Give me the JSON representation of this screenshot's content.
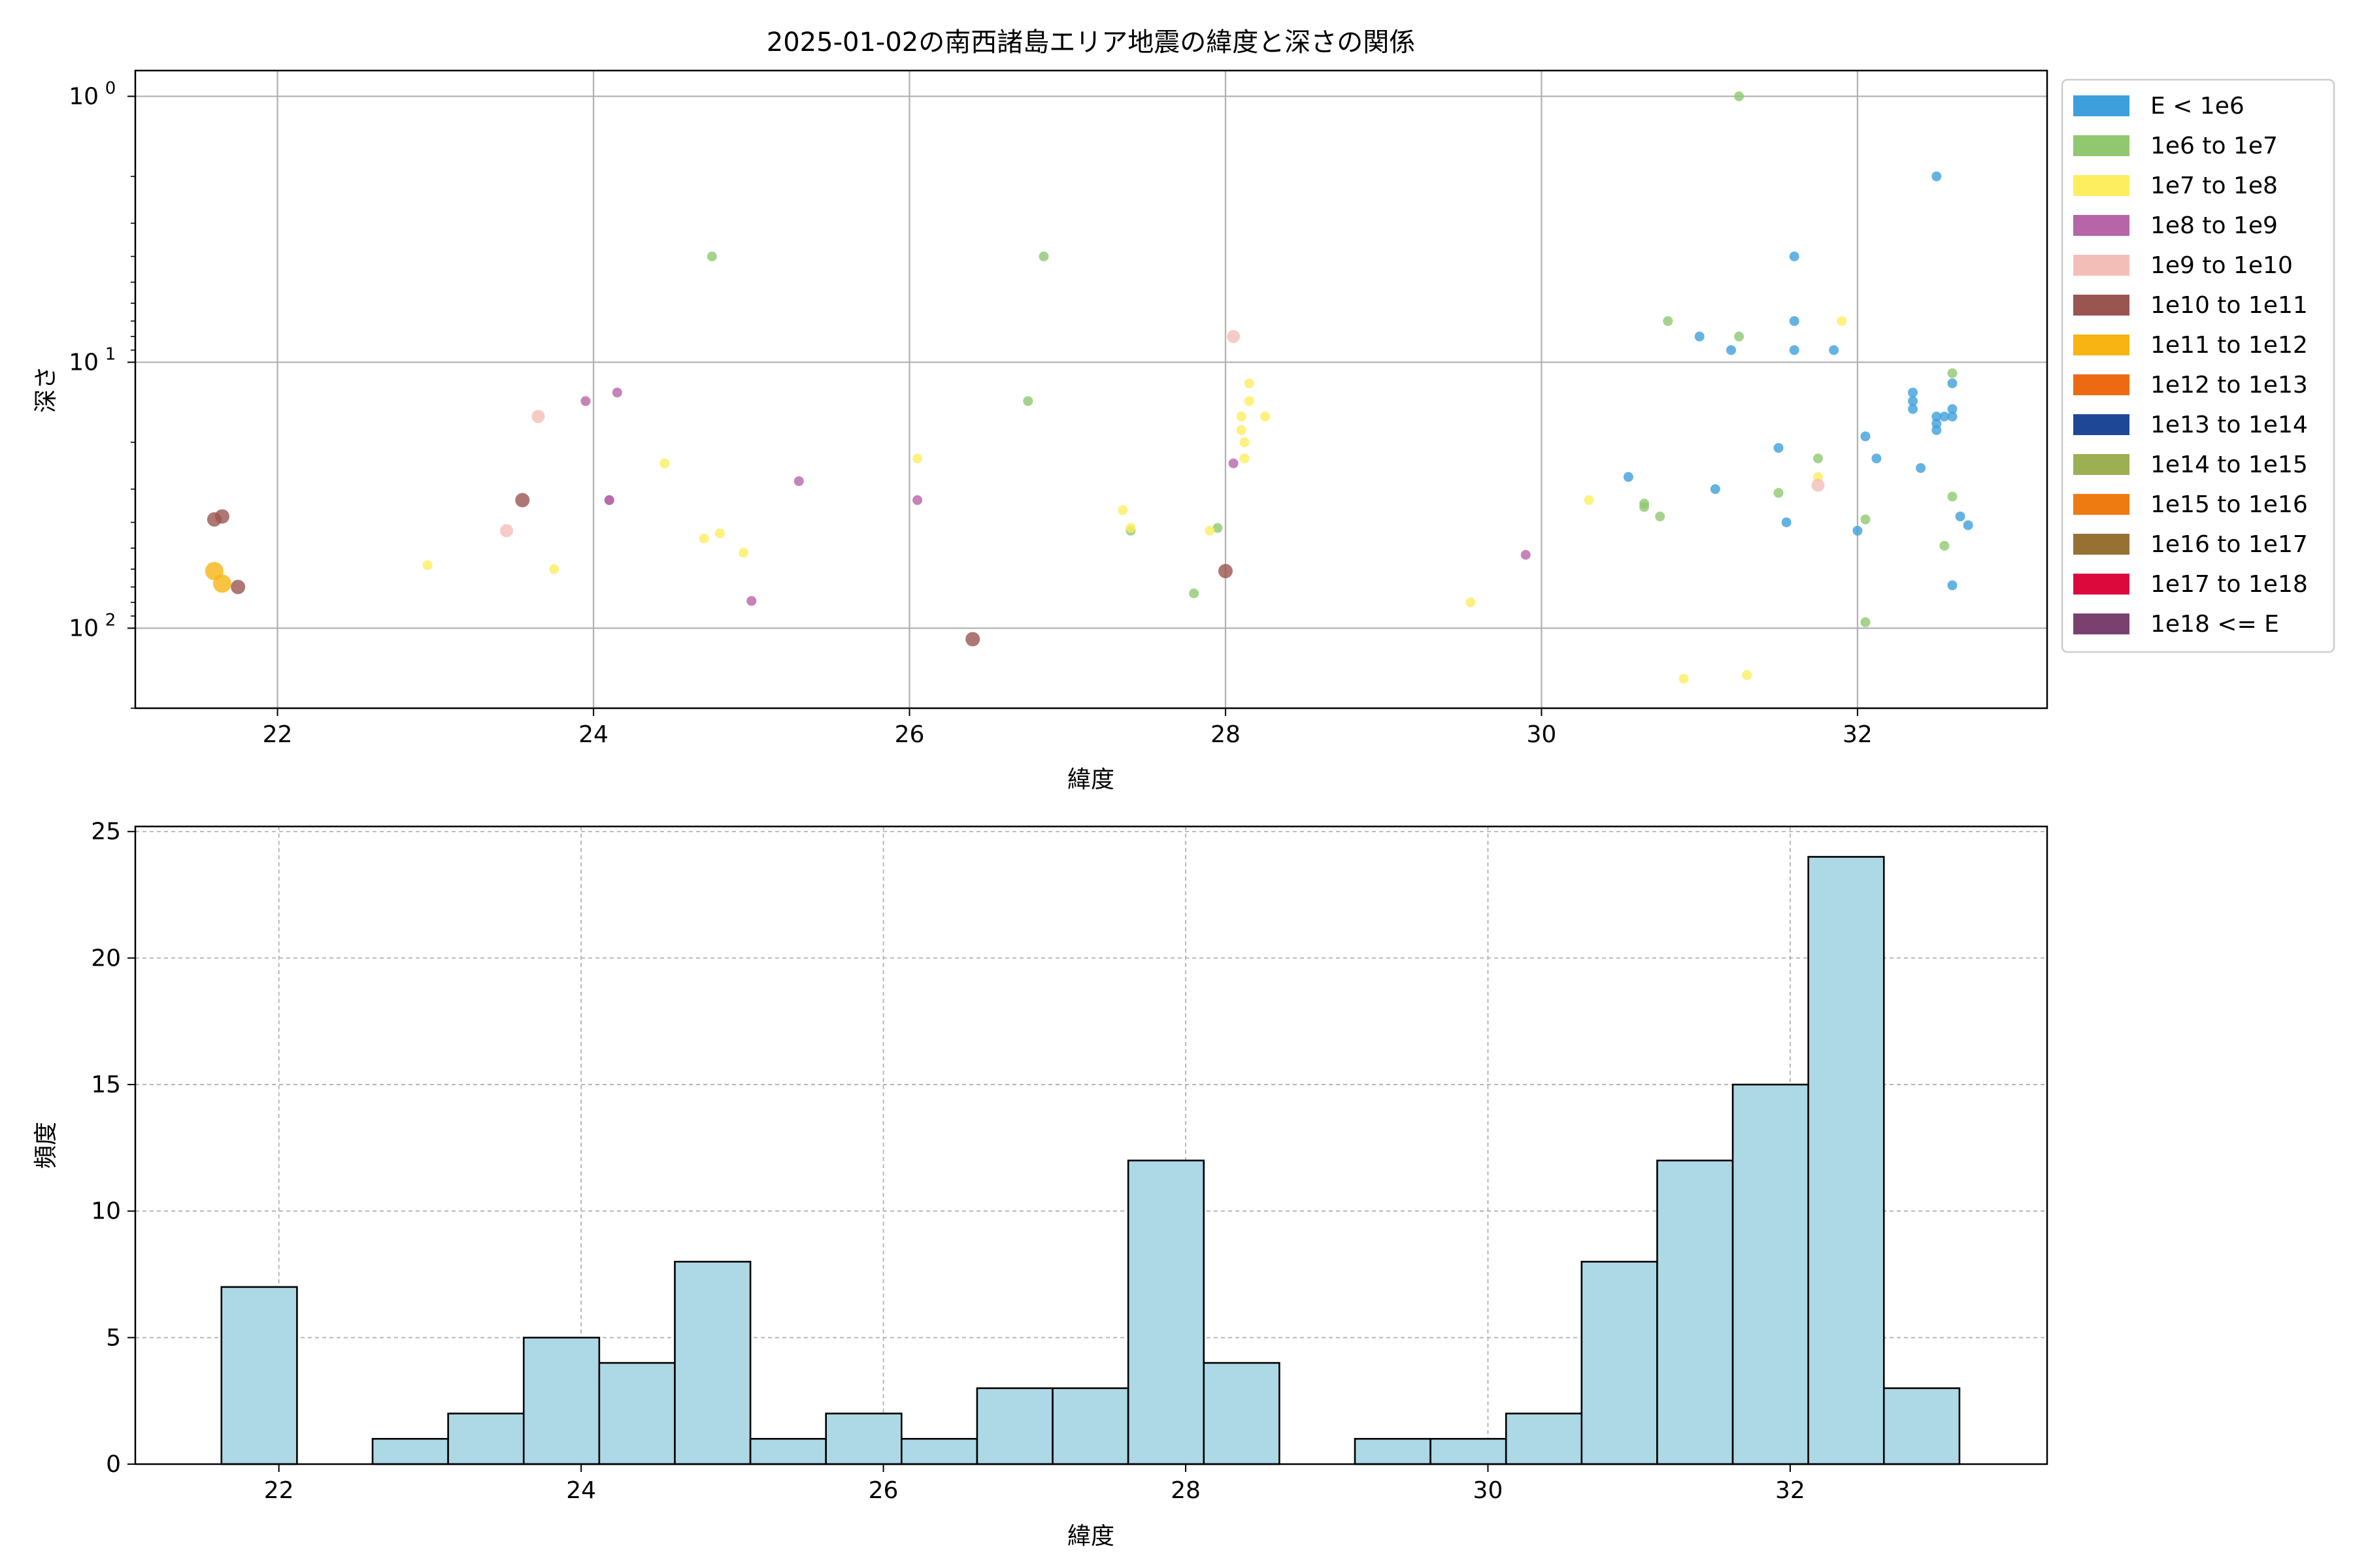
{
  "chart_data": [
    {
      "type": "scatter",
      "title": "2025-01-02の南西諸島エリア地震の緯度と深さの関係",
      "xlabel": "緯度",
      "ylabel": "深さ",
      "xlim": [
        21.1,
        33.2
      ],
      "ylim": [
        200,
        0.8
      ],
      "yscale": "log",
      "y_inverted": true,
      "grid": true,
      "x_ticks": [
        22,
        24,
        26,
        28,
        30,
        32
      ],
      "x_tick_labels": [
        "22",
        "24",
        "26",
        "28",
        "30",
        "32"
      ],
      "y_ticks": [
        1,
        10,
        100
      ],
      "y_tick_base": "10",
      "y_tick_exps": [
        "0",
        "1",
        "2"
      ],
      "legend": {
        "placement": "outside-right",
        "entries": [
          {
            "label": "E < 1e6",
            "color": "#3da0dc"
          },
          {
            "label": "1e6 to 1e7",
            "color": "#8fc86f"
          },
          {
            "label": "1e7 to 1e8",
            "color": "#fcee5f"
          },
          {
            "label": "1e8 to 1e9",
            "color": "#b565a8"
          },
          {
            "label": "1e9 to 1e10",
            "color": "#f4beb8"
          },
          {
            "label": "1e10 to 1e11",
            "color": "#9a5550"
          },
          {
            "label": "1e11 to 1e12",
            "color": "#f7b413"
          },
          {
            "label": "1e12 to 1e13",
            "color": "#ee6a12"
          },
          {
            "label": "1e13 to 1e14",
            "color": "#1e4896"
          },
          {
            "label": "1e14 to 1e15",
            "color": "#9caf52"
          },
          {
            "label": "1e15 to 1e16",
            "color": "#ee7a12"
          },
          {
            "label": "1e16 to 1e17",
            "color": "#967133"
          },
          {
            "label": "1e17 to 1e18",
            "color": "#dc0a3c"
          },
          {
            "label": "1e18 <= E",
            "color": "#7a4070"
          }
        ]
      },
      "points": [
        {
          "x": 32.5,
          "y": 2.0,
          "c": 0
        },
        {
          "x": 31.6,
          "y": 4.0,
          "c": 0
        },
        {
          "x": 31.6,
          "y": 7.0,
          "c": 0
        },
        {
          "x": 31.0,
          "y": 8.0,
          "c": 0
        },
        {
          "x": 31.2,
          "y": 9.0,
          "c": 0
        },
        {
          "x": 31.6,
          "y": 9.0,
          "c": 0
        },
        {
          "x": 31.85,
          "y": 9.0,
          "c": 0
        },
        {
          "x": 32.35,
          "y": 13.0,
          "c": 0
        },
        {
          "x": 32.35,
          "y": 14.0,
          "c": 0
        },
        {
          "x": 32.35,
          "y": 15.0,
          "c": 0
        },
        {
          "x": 32.6,
          "y": 12.0,
          "c": 0
        },
        {
          "x": 32.6,
          "y": 15.0,
          "c": 0
        },
        {
          "x": 32.5,
          "y": 16.0,
          "c": 0
        },
        {
          "x": 32.5,
          "y": 17.0,
          "c": 0
        },
        {
          "x": 32.55,
          "y": 16.0,
          "c": 0
        },
        {
          "x": 32.6,
          "y": 16.0,
          "c": 0
        },
        {
          "x": 32.5,
          "y": 18.0,
          "c": 0
        },
        {
          "x": 32.05,
          "y": 19.0,
          "c": 0
        },
        {
          "x": 32.12,
          "y": 23.0,
          "c": 0
        },
        {
          "x": 31.5,
          "y": 21.0,
          "c": 0
        },
        {
          "x": 30.55,
          "y": 27.0,
          "c": 0
        },
        {
          "x": 31.1,
          "y": 30.0,
          "c": 0
        },
        {
          "x": 32.4,
          "y": 25.0,
          "c": 0
        },
        {
          "x": 31.55,
          "y": 40.0,
          "c": 0
        },
        {
          "x": 32.0,
          "y": 43.0,
          "c": 0
        },
        {
          "x": 32.65,
          "y": 38.0,
          "c": 0
        },
        {
          "x": 32.7,
          "y": 41.0,
          "c": 0
        },
        {
          "x": 32.6,
          "y": 69.0,
          "c": 0
        },
        {
          "x": 31.25,
          "y": 1.0,
          "c": 1
        },
        {
          "x": 24.75,
          "y": 4.0,
          "c": 1
        },
        {
          "x": 26.85,
          "y": 4.0,
          "c": 1
        },
        {
          "x": 30.8,
          "y": 7.0,
          "c": 1
        },
        {
          "x": 31.25,
          "y": 8.0,
          "c": 1
        },
        {
          "x": 26.75,
          "y": 14.0,
          "c": 1
        },
        {
          "x": 32.6,
          "y": 11.0,
          "c": 1
        },
        {
          "x": 31.75,
          "y": 23.0,
          "c": 1
        },
        {
          "x": 31.5,
          "y": 31.0,
          "c": 1
        },
        {
          "x": 30.65,
          "y": 34.0,
          "c": 1
        },
        {
          "x": 30.65,
          "y": 35.0,
          "c": 1
        },
        {
          "x": 30.75,
          "y": 38.0,
          "c": 1
        },
        {
          "x": 32.6,
          "y": 32.0,
          "c": 1
        },
        {
          "x": 32.05,
          "y": 39.0,
          "c": 1
        },
        {
          "x": 27.4,
          "y": 43.0,
          "c": 1
        },
        {
          "x": 27.95,
          "y": 42.0,
          "c": 1
        },
        {
          "x": 32.55,
          "y": 49.0,
          "c": 1
        },
        {
          "x": 27.8,
          "y": 74.0,
          "c": 1
        },
        {
          "x": 32.05,
          "y": 95.0,
          "c": 1
        },
        {
          "x": 31.9,
          "y": 7.0,
          "c": 2
        },
        {
          "x": 28.15,
          "y": 12.0,
          "c": 2
        },
        {
          "x": 28.15,
          "y": 14.0,
          "c": 2
        },
        {
          "x": 28.1,
          "y": 16.0,
          "c": 2
        },
        {
          "x": 28.25,
          "y": 16.0,
          "c": 2
        },
        {
          "x": 28.1,
          "y": 18.0,
          "c": 2
        },
        {
          "x": 28.12,
          "y": 20.0,
          "c": 2
        },
        {
          "x": 28.12,
          "y": 23.0,
          "c": 2
        },
        {
          "x": 26.05,
          "y": 23.0,
          "c": 2
        },
        {
          "x": 24.45,
          "y": 24.0,
          "c": 2
        },
        {
          "x": 31.75,
          "y": 27.0,
          "c": 2
        },
        {
          "x": 30.3,
          "y": 33.0,
          "c": 2
        },
        {
          "x": 27.35,
          "y": 36.0,
          "c": 2
        },
        {
          "x": 27.4,
          "y": 42.0,
          "c": 2
        },
        {
          "x": 27.9,
          "y": 43.0,
          "c": 2
        },
        {
          "x": 24.8,
          "y": 44.0,
          "c": 2
        },
        {
          "x": 24.7,
          "y": 46.0,
          "c": 2
        },
        {
          "x": 24.95,
          "y": 52.0,
          "c": 2
        },
        {
          "x": 22.95,
          "y": 58.0,
          "c": 2
        },
        {
          "x": 23.75,
          "y": 60.0,
          "c": 2
        },
        {
          "x": 29.55,
          "y": 80.0,
          "c": 2
        },
        {
          "x": 30.9,
          "y": 155.0,
          "c": 2
        },
        {
          "x": 31.3,
          "y": 150.0,
          "c": 2
        },
        {
          "x": 23.95,
          "y": 14.0,
          "c": 3
        },
        {
          "x": 24.15,
          "y": 13.0,
          "c": 3
        },
        {
          "x": 28.05,
          "y": 24.0,
          "c": 3
        },
        {
          "x": 25.3,
          "y": 28.0,
          "c": 3
        },
        {
          "x": 24.1,
          "y": 33.0,
          "c": 3
        },
        {
          "x": 24.1,
          "y": 33.0,
          "c": 3
        },
        {
          "x": 26.05,
          "y": 33.0,
          "c": 3
        },
        {
          "x": 29.9,
          "y": 53.0,
          "c": 3
        },
        {
          "x": 25.0,
          "y": 79.0,
          "c": 3
        },
        {
          "x": 28.05,
          "y": 8.0,
          "c": 4
        },
        {
          "x": 23.65,
          "y": 16.0,
          "c": 4
        },
        {
          "x": 31.75,
          "y": 29.0,
          "c": 4
        },
        {
          "x": 23.45,
          "y": 43.0,
          "c": 4
        },
        {
          "x": 23.55,
          "y": 33.0,
          "c": 5
        },
        {
          "x": 21.6,
          "y": 39.0,
          "c": 5
        },
        {
          "x": 21.65,
          "y": 38.0,
          "c": 5
        },
        {
          "x": 21.75,
          "y": 70.0,
          "c": 5
        },
        {
          "x": 28.0,
          "y": 61.0,
          "c": 5
        },
        {
          "x": 26.4,
          "y": 110.0,
          "c": 5
        },
        {
          "x": 21.6,
          "y": 61.0,
          "c": 6
        },
        {
          "x": 21.65,
          "y": 68.0,
          "c": 6
        }
      ]
    },
    {
      "type": "bar",
      "subtype": "histogram",
      "xlabel": "緯度",
      "ylabel": "頻度",
      "xlim": [
        21.05,
        33.7
      ],
      "ylim": [
        0,
        25.2
      ],
      "grid": true,
      "x_ticks": [
        22,
        24,
        26,
        28,
        30,
        32
      ],
      "x_tick_labels": [
        "22",
        "24",
        "26",
        "28",
        "30",
        "32"
      ],
      "y_ticks": [
        0,
        5,
        10,
        15,
        20,
        25
      ],
      "y_tick_labels": [
        "0",
        "5",
        "10",
        "15",
        "20",
        "25"
      ],
      "bar_color": "#add8e6",
      "bin_start": 21.62,
      "bin_width": 0.5,
      "values": [
        7,
        0,
        1,
        2,
        5,
        4,
        8,
        1,
        2,
        1,
        3,
        3,
        12,
        4,
        0,
        1,
        1,
        2,
        8,
        12,
        15,
        24,
        3
      ]
    }
  ]
}
